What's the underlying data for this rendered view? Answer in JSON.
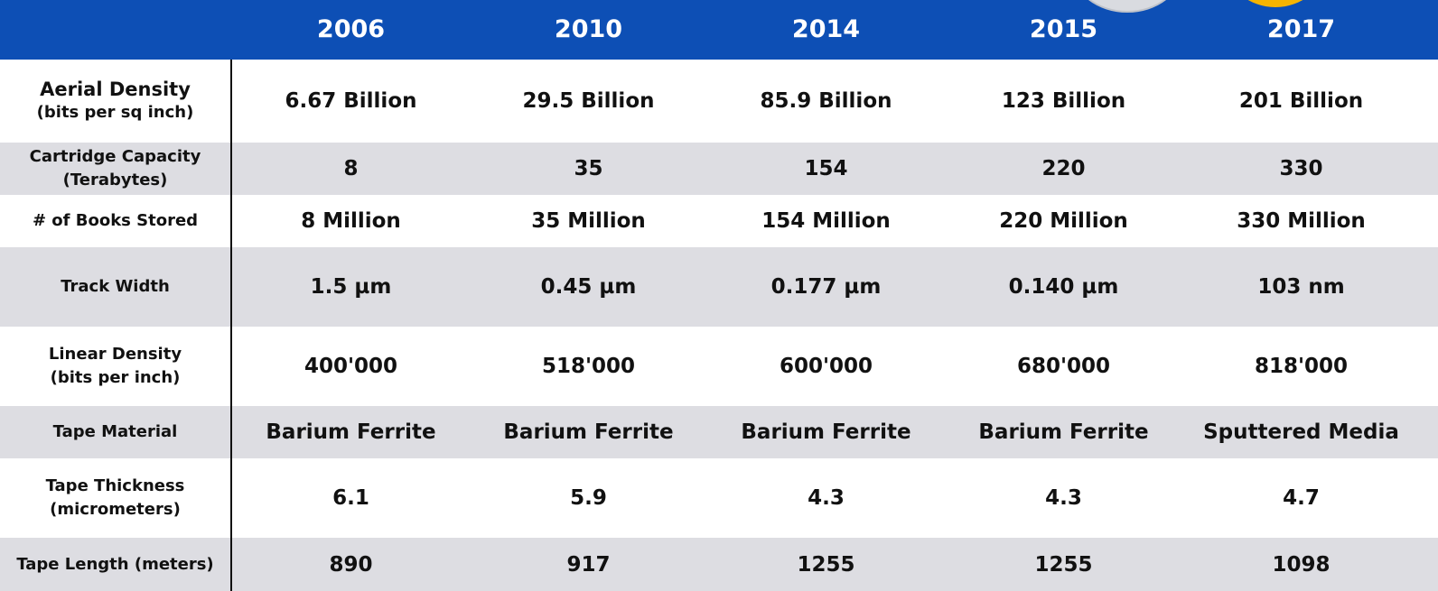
{
  "colors": {
    "header_bg": "#0d4fb5",
    "header_text": "#ffffff",
    "alt_row_bg": "#dddde2",
    "row_bg": "#ffffff",
    "text": "#111111",
    "decoration_silver": "#d9dbe0",
    "decoration_gold": "#f6b400"
  },
  "years": [
    "2006",
    "2010",
    "2014",
    "2015",
    "2017"
  ],
  "rows": [
    {
      "label": "Aerial Density",
      "sublabel": "(bits per sq inch)",
      "values": [
        "6.67 Billion",
        "29.5 Billion",
        "85.9 Billion",
        "123 Billion",
        "201 Billion"
      ]
    },
    {
      "label": "Cartridge Capacity",
      "sublabel": "(Terabytes)",
      "values": [
        "8",
        "35",
        "154",
        "220",
        "330"
      ]
    },
    {
      "label": "# of Books Stored",
      "sublabel": "",
      "values": [
        "8 Million",
        "35 Million",
        "154 Million",
        "220 Million",
        "330 Million"
      ]
    },
    {
      "label": "Track Width",
      "sublabel": "",
      "values": [
        "1.5 µm",
        "0.45 µm",
        "0.177 µm",
        "0.140 µm",
        "103 nm"
      ]
    },
    {
      "label": "Linear Density",
      "sublabel": "(bits per inch)",
      "values": [
        "400'000",
        "518'000",
        "600'000",
        "680'000",
        "818'000"
      ]
    },
    {
      "label": "Tape Material",
      "sublabel": "",
      "values": [
        "Barium Ferrite",
        "Barium Ferrite",
        "Barium Ferrite",
        "Barium Ferrite",
        "Sputtered Media"
      ]
    },
    {
      "label": "Tape Thickness",
      "sublabel": "(micrometers)",
      "values": [
        "6.1",
        "5.9",
        "4.3",
        "4.3",
        "4.7"
      ]
    },
    {
      "label": "Tape Length (meters)",
      "sublabel": "",
      "values": [
        "890",
        "917",
        "1255",
        "1255",
        "1098"
      ]
    }
  ]
}
